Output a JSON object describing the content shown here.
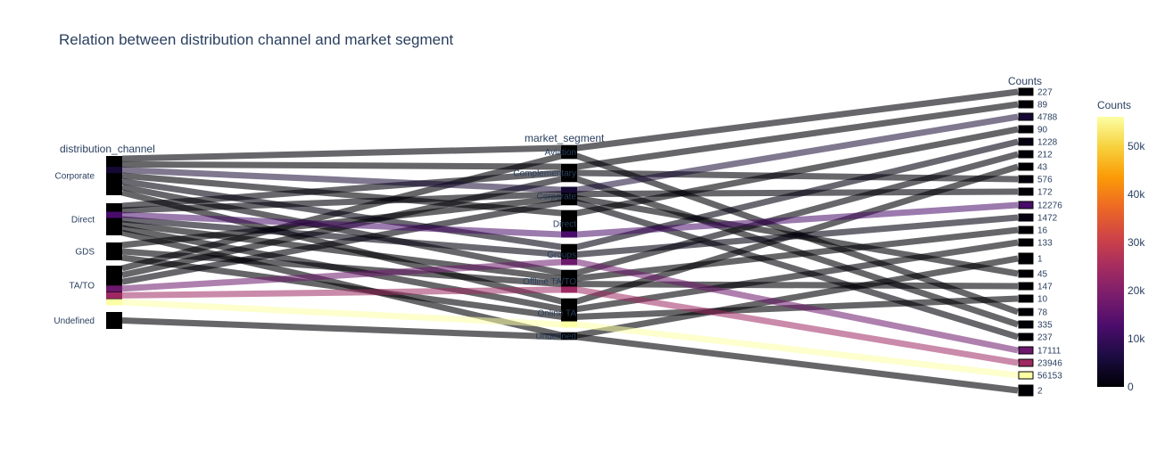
{
  "chart_data": {
    "type": "parallel_categories",
    "title": "Relation between distribution channel and market segment",
    "dimensions": [
      {
        "label": "distribution_channel",
        "categories": [
          "Corporate",
          "Direct",
          "GDS",
          "TA/TO",
          "Undefined"
        ]
      },
      {
        "label": "market_segment",
        "categories": [
          "Aviation",
          "Complementary",
          "Corporate",
          "Direct",
          "Groups",
          "Offline TA/TO",
          "Online TA",
          "Undefined"
        ]
      },
      {
        "label": "Counts"
      }
    ],
    "flows": [
      {
        "from": "Corporate",
        "to": "Aviation",
        "count": 227
      },
      {
        "from": "Corporate",
        "to": "Complementary",
        "count": 89
      },
      {
        "from": "Corporate",
        "to": "Corporate",
        "count": 4788
      },
      {
        "from": "Corporate",
        "to": "Direct",
        "count": 90
      },
      {
        "from": "Corporate",
        "to": "Groups",
        "count": 1228
      },
      {
        "from": "Corporate",
        "to": "Offline TA/TO",
        "count": 212
      },
      {
        "from": "Corporate",
        "to": "Online TA",
        "count": 43
      },
      {
        "from": "Direct",
        "to": "Complementary",
        "count": 576
      },
      {
        "from": "Direct",
        "to": "Corporate",
        "count": 172
      },
      {
        "from": "Direct",
        "to": "Direct",
        "count": 12276
      },
      {
        "from": "Direct",
        "to": "Groups",
        "count": 1472
      },
      {
        "from": "Direct",
        "to": "Offline TA/TO",
        "count": 16
      },
      {
        "from": "Direct",
        "to": "Online TA",
        "count": 133
      },
      {
        "from": "Direct",
        "to": "Undefined",
        "count": 1
      },
      {
        "from": "GDS",
        "to": "Corporate",
        "count": 45
      },
      {
        "from": "GDS",
        "to": "Offline TA/TO",
        "count": 147
      },
      {
        "from": "GDS",
        "to": "Online TA",
        "count": 10
      },
      {
        "from": "TA/TO",
        "to": "Aviation",
        "count": 78
      },
      {
        "from": "TA/TO",
        "to": "Complementary",
        "count": 335
      },
      {
        "from": "TA/TO",
        "to": "Corporate",
        "count": 237
      },
      {
        "from": "TA/TO",
        "to": "Groups",
        "count": 17111
      },
      {
        "from": "TA/TO",
        "to": "Offline TA/TO",
        "count": 23946
      },
      {
        "from": "TA/TO",
        "to": "Online TA",
        "count": 56153
      },
      {
        "from": "Undefined",
        "to": "Undefined",
        "count": 2
      }
    ],
    "colorscale": "inferno",
    "colorbar": {
      "title": "Counts",
      "range": [
        0,
        56153
      ],
      "ticks": [
        0,
        10000,
        20000,
        30000,
        40000,
        50000
      ],
      "ticklabels": [
        "0",
        "10k",
        "20k",
        "30k",
        "40k",
        "50k"
      ]
    }
  }
}
